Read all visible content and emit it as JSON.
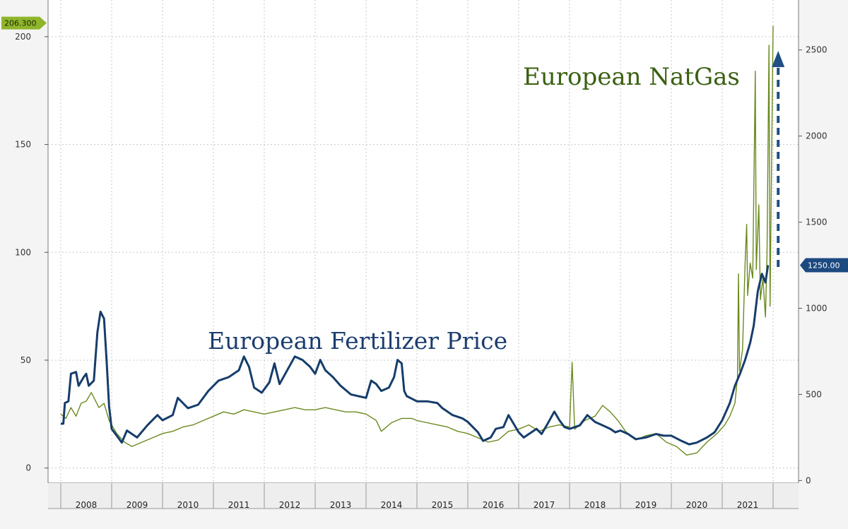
{
  "chart_data": {
    "type": "line",
    "title": "",
    "annotations": [
      "European NatGas",
      "European Fertilizer Price"
    ],
    "x_years": [
      "2008",
      "2009",
      "2010",
      "2011",
      "2012",
      "2013",
      "2014",
      "2015",
      "2016",
      "2017",
      "2018",
      "2019",
      "2020",
      "2021"
    ],
    "left_axis": {
      "ticks": [
        "0",
        "50",
        "100",
        "150",
        "200"
      ],
      "range": [
        -7,
        217
      ]
    },
    "right_axis": {
      "ticks": [
        "0",
        "500",
        "1000",
        "1500",
        "2000",
        "2500"
      ],
      "range": [
        -15,
        2790
      ]
    },
    "grid": true,
    "last_value_labels": {
      "natgas": "206.300",
      "fertilizer": "1250.00"
    },
    "colors": {
      "natgas": "#6b8a1f",
      "fertilizer": "#163d6b",
      "badge_natgas": "#8fb52b",
      "badge_fert": "#1c4a80"
    },
    "series": [
      {
        "axis": "left",
        "style": "thin",
        "points": [
          [
            2008.0,
            25
          ],
          [
            2008.1,
            23
          ],
          [
            2008.2,
            28
          ],
          [
            2008.3,
            24
          ],
          [
            2008.4,
            30
          ],
          [
            2008.5,
            31
          ],
          [
            2008.6,
            35
          ],
          [
            2008.75,
            28
          ],
          [
            2008.85,
            30
          ],
          [
            2008.95,
            22
          ],
          [
            2009.1,
            16
          ],
          [
            2009.25,
            12
          ],
          [
            2009.4,
            10
          ],
          [
            2009.6,
            12
          ],
          [
            2009.8,
            14
          ],
          [
            2010.0,
            16
          ],
          [
            2010.2,
            17
          ],
          [
            2010.4,
            19
          ],
          [
            2010.6,
            20
          ],
          [
            2010.8,
            22
          ],
          [
            2011.0,
            24
          ],
          [
            2011.2,
            26
          ],
          [
            2011.4,
            25
          ],
          [
            2011.6,
            27
          ],
          [
            2011.8,
            26
          ],
          [
            2012.0,
            25
          ],
          [
            2012.2,
            26
          ],
          [
            2012.4,
            27
          ],
          [
            2012.6,
            28
          ],
          [
            2012.8,
            27
          ],
          [
            2013.0,
            27
          ],
          [
            2013.2,
            28
          ],
          [
            2013.4,
            27
          ],
          [
            2013.6,
            26
          ],
          [
            2013.8,
            26
          ],
          [
            2014.0,
            25
          ],
          [
            2014.2,
            22
          ],
          [
            2014.3,
            17
          ],
          [
            2014.5,
            21
          ],
          [
            2014.7,
            23
          ],
          [
            2014.9,
            23
          ],
          [
            2015.0,
            22
          ],
          [
            2015.2,
            21
          ],
          [
            2015.4,
            20
          ],
          [
            2015.6,
            19
          ],
          [
            2015.8,
            17
          ],
          [
            2016.0,
            16
          ],
          [
            2016.2,
            14
          ],
          [
            2016.4,
            12
          ],
          [
            2016.6,
            13
          ],
          [
            2016.8,
            17
          ],
          [
            2017.0,
            18
          ],
          [
            2017.2,
            20
          ],
          [
            2017.4,
            17
          ],
          [
            2017.6,
            19
          ],
          [
            2017.8,
            20
          ],
          [
            2018.0,
            19
          ],
          [
            2018.05,
            49
          ],
          [
            2018.1,
            18
          ],
          [
            2018.3,
            22
          ],
          [
            2018.5,
            24
          ],
          [
            2018.65,
            29
          ],
          [
            2018.8,
            26
          ],
          [
            2018.95,
            22
          ],
          [
            2019.1,
            17
          ],
          [
            2019.3,
            13
          ],
          [
            2019.5,
            15
          ],
          [
            2019.7,
            16
          ],
          [
            2019.9,
            12
          ],
          [
            2020.1,
            10
          ],
          [
            2020.3,
            6
          ],
          [
            2020.5,
            7
          ],
          [
            2020.7,
            12
          ],
          [
            2020.9,
            16
          ],
          [
            2021.05,
            20
          ],
          [
            2021.15,
            24
          ],
          [
            2021.25,
            30
          ],
          [
            2021.3,
            42
          ],
          [
            2021.32,
            90
          ],
          [
            2021.34,
            45
          ],
          [
            2021.4,
            55
          ],
          [
            2021.45,
            95
          ],
          [
            2021.48,
            113
          ],
          [
            2021.5,
            80
          ],
          [
            2021.55,
            95
          ],
          [
            2021.6,
            88
          ],
          [
            2021.65,
            184
          ],
          [
            2021.67,
            92
          ],
          [
            2021.72,
            122
          ],
          [
            2021.75,
            78
          ],
          [
            2021.8,
            88
          ],
          [
            2021.85,
            70
          ],
          [
            2021.88,
            99
          ],
          [
            2021.92,
            196
          ],
          [
            2021.94,
            75
          ],
          [
            2021.97,
            140
          ],
          [
            2022.0,
            205
          ]
        ]
      },
      {
        "axis": "right",
        "style": "thick",
        "points": [
          [
            2008.0,
            330
          ],
          [
            2008.05,
            330
          ],
          [
            2008.08,
            450
          ],
          [
            2008.15,
            460
          ],
          [
            2008.2,
            620
          ],
          [
            2008.3,
            630
          ],
          [
            2008.35,
            550
          ],
          [
            2008.45,
            600
          ],
          [
            2008.5,
            620
          ],
          [
            2008.55,
            550
          ],
          [
            2008.65,
            580
          ],
          [
            2008.72,
            860
          ],
          [
            2008.78,
            980
          ],
          [
            2008.85,
            940
          ],
          [
            2008.9,
            700
          ],
          [
            2008.95,
            430
          ],
          [
            2009.0,
            300
          ],
          [
            2009.1,
            260
          ],
          [
            2009.2,
            220
          ],
          [
            2009.3,
            290
          ],
          [
            2009.5,
            250
          ],
          [
            2009.7,
            320
          ],
          [
            2009.9,
            380
          ],
          [
            2010.0,
            350
          ],
          [
            2010.2,
            380
          ],
          [
            2010.3,
            480
          ],
          [
            2010.5,
            420
          ],
          [
            2010.7,
            440
          ],
          [
            2010.9,
            520
          ],
          [
            2011.1,
            580
          ],
          [
            2011.3,
            600
          ],
          [
            2011.5,
            640
          ],
          [
            2011.6,
            720
          ],
          [
            2011.7,
            660
          ],
          [
            2011.8,
            540
          ],
          [
            2011.95,
            510
          ],
          [
            2012.1,
            570
          ],
          [
            2012.2,
            680
          ],
          [
            2012.3,
            560
          ],
          [
            2012.45,
            640
          ],
          [
            2012.6,
            720
          ],
          [
            2012.75,
            700
          ],
          [
            2012.9,
            660
          ],
          [
            2013.0,
            620
          ],
          [
            2013.1,
            700
          ],
          [
            2013.2,
            640
          ],
          [
            2013.35,
            600
          ],
          [
            2013.5,
            550
          ],
          [
            2013.7,
            500
          ],
          [
            2013.85,
            490
          ],
          [
            2014.0,
            480
          ],
          [
            2014.1,
            580
          ],
          [
            2014.2,
            560
          ],
          [
            2014.3,
            520
          ],
          [
            2014.45,
            540
          ],
          [
            2014.55,
            600
          ],
          [
            2014.62,
            700
          ],
          [
            2014.7,
            680
          ],
          [
            2014.75,
            520
          ],
          [
            2014.8,
            490
          ],
          [
            2015.0,
            460
          ],
          [
            2015.2,
            460
          ],
          [
            2015.4,
            450
          ],
          [
            2015.5,
            420
          ],
          [
            2015.7,
            380
          ],
          [
            2015.9,
            360
          ],
          [
            2016.0,
            340
          ],
          [
            2016.2,
            280
          ],
          [
            2016.3,
            230
          ],
          [
            2016.45,
            250
          ],
          [
            2016.55,
            300
          ],
          [
            2016.7,
            310
          ],
          [
            2016.8,
            380
          ],
          [
            2016.9,
            330
          ],
          [
            2017.0,
            280
          ],
          [
            2017.1,
            250
          ],
          [
            2017.2,
            270
          ],
          [
            2017.35,
            300
          ],
          [
            2017.45,
            270
          ],
          [
            2017.55,
            320
          ],
          [
            2017.7,
            400
          ],
          [
            2017.8,
            350
          ],
          [
            2017.9,
            310
          ],
          [
            2018.0,
            300
          ],
          [
            2018.2,
            320
          ],
          [
            2018.35,
            380
          ],
          [
            2018.5,
            340
          ],
          [
            2018.65,
            320
          ],
          [
            2018.8,
            300
          ],
          [
            2018.9,
            280
          ],
          [
            2019.0,
            290
          ],
          [
            2019.15,
            270
          ],
          [
            2019.3,
            240
          ],
          [
            2019.5,
            250
          ],
          [
            2019.7,
            270
          ],
          [
            2019.85,
            260
          ],
          [
            2020.0,
            260
          ],
          [
            2020.2,
            230
          ],
          [
            2020.35,
            210
          ],
          [
            2020.5,
            220
          ],
          [
            2020.7,
            250
          ],
          [
            2020.85,
            280
          ],
          [
            2021.0,
            350
          ],
          [
            2021.15,
            450
          ],
          [
            2021.25,
            550
          ],
          [
            2021.35,
            620
          ],
          [
            2021.45,
            700
          ],
          [
            2021.55,
            800
          ],
          [
            2021.62,
            900
          ],
          [
            2021.7,
            1100
          ],
          [
            2021.78,
            1200
          ],
          [
            2021.85,
            1150
          ],
          [
            2021.9,
            1250
          ]
        ]
      }
    ]
  }
}
